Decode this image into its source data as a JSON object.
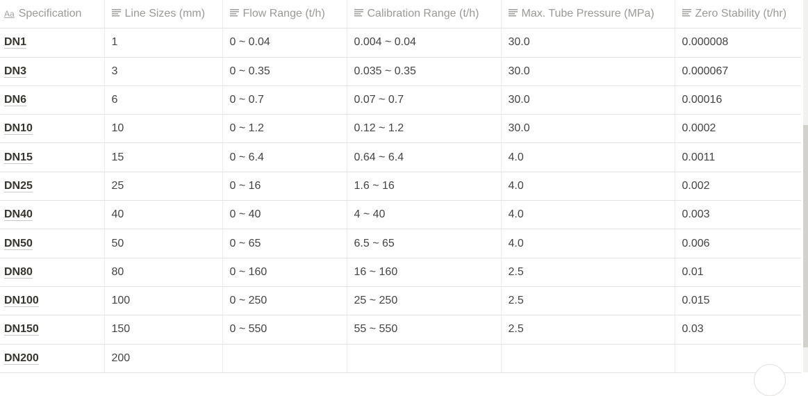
{
  "columns": [
    {
      "label": "Specification",
      "icon": "text-title-icon"
    },
    {
      "label": "Line Sizes (mm)",
      "icon": "text-lines-icon"
    },
    {
      "label": "Flow Range (t/h)",
      "icon": "text-lines-icon"
    },
    {
      "label": "Calibration Range (t/h)",
      "icon": "text-lines-icon"
    },
    {
      "label": "Max. Tube Pressure (MPa)",
      "icon": "text-lines-icon"
    },
    {
      "label": "Zero Stability (t/hr)",
      "icon": "text-lines-icon"
    }
  ],
  "title_icon_text": "Aa",
  "rows": [
    [
      "DN1",
      "1",
      "0 ~ 0.04",
      "0.004 ~ 0.04",
      "30.0",
      "0.000008"
    ],
    [
      "DN3",
      "3",
      "0 ~ 0.35",
      "0.035 ~ 0.35",
      "30.0",
      "0.000067"
    ],
    [
      "DN6",
      "6",
      "0 ~ 0.7",
      "0.07 ~ 0.7",
      "30.0",
      "0.00016"
    ],
    [
      "DN10",
      "10",
      "0 ~ 1.2",
      "0.12 ~ 1.2",
      "30.0",
      "0.0002"
    ],
    [
      "DN15",
      "15",
      "0 ~ 6.4",
      "0.64 ~ 6.4",
      "4.0",
      "0.0011"
    ],
    [
      "DN25",
      "25",
      "0 ~ 16",
      "1.6 ~ 16",
      "4.0",
      "0.002"
    ],
    [
      "DN40",
      "40",
      "0 ~ 40",
      "4 ~ 40",
      "4.0",
      "0.003"
    ],
    [
      "DN50",
      "50",
      "0 ~ 65",
      "6.5 ~ 65",
      "4.0",
      "0.006"
    ],
    [
      "DN80",
      "80",
      "0 ~ 160",
      "16 ~ 160",
      "2.5",
      "0.01"
    ],
    [
      "DN100",
      "100",
      "0 ~ 250",
      "25 ~ 250",
      "2.5",
      "0.015"
    ],
    [
      "DN150",
      "150",
      "0 ~ 550",
      "55 ~ 550",
      "2.5",
      "0.03"
    ],
    [
      "DN200",
      "200",
      "",
      "",
      "",
      ""
    ]
  ]
}
